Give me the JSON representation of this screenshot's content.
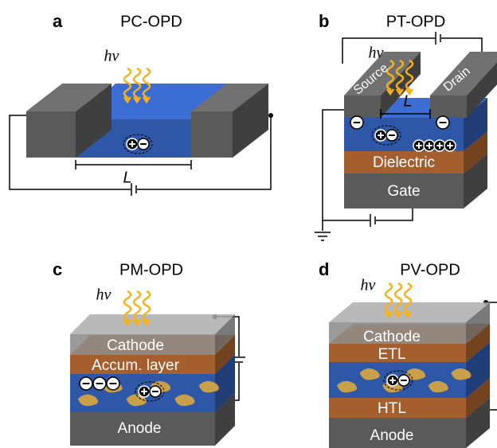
{
  "panels": [
    {
      "letter": "a",
      "title": "PC-OPD",
      "photon": "hν",
      "length": "L"
    },
    {
      "letter": "b",
      "title": "PT-OPD",
      "photon": "hν",
      "source": "Source",
      "drain": "Drain",
      "length": "L",
      "dielectric": "Dielectric",
      "gate": "Gate"
    },
    {
      "letter": "c",
      "title": "PM-OPD",
      "photon": "hν",
      "layers": [
        "Cathode",
        "Accum. layer",
        "Anode"
      ]
    },
    {
      "letter": "d",
      "title": "PV-OPD",
      "photon": "hν",
      "layers": [
        "Cathode",
        "ETL",
        "HTL",
        "Anode"
      ]
    }
  ]
}
